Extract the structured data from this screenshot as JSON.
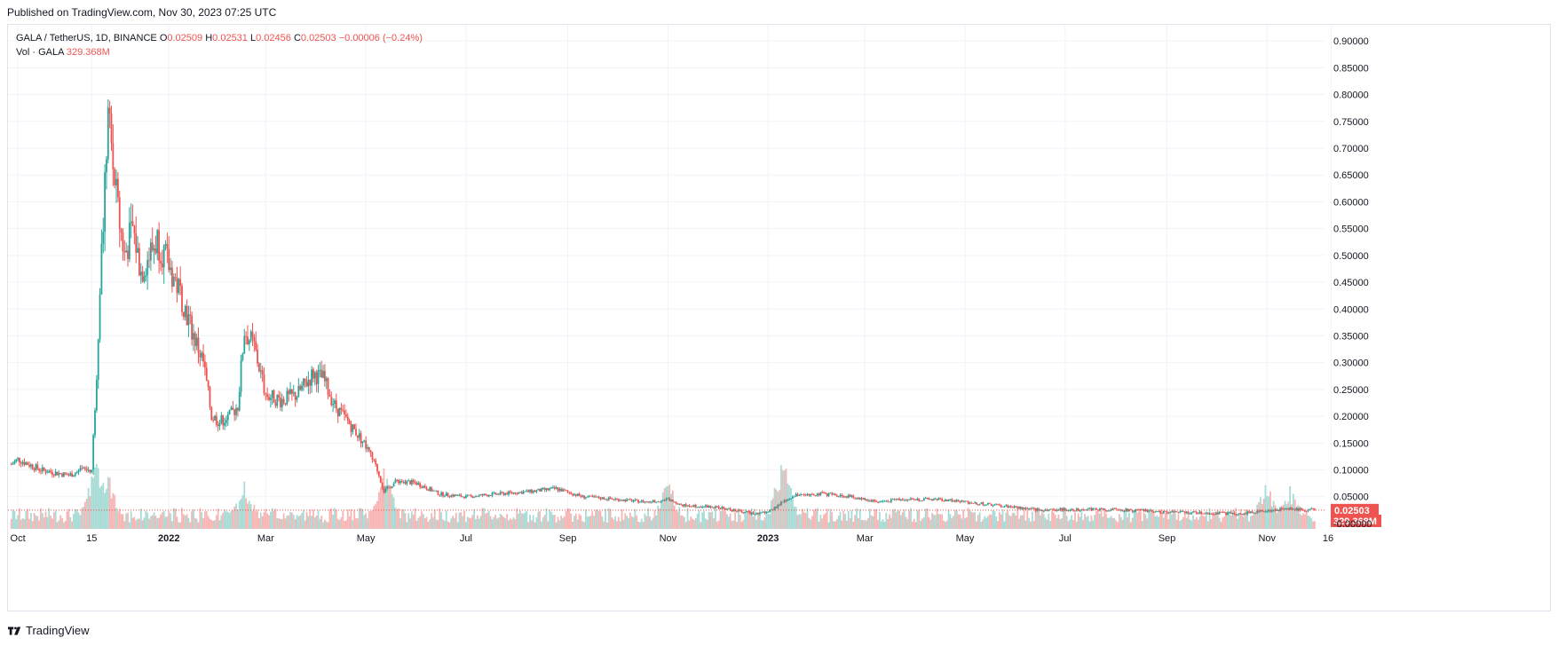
{
  "header": {
    "published": "Published on TradingView.com, Nov 30, 2023 07:25 UTC"
  },
  "legend": {
    "symbol": "GALA / TetherUS, 1D, BINANCE",
    "open_label": "O",
    "open": "0.02509",
    "high_label": "H",
    "high": "0.02531",
    "low_label": "L",
    "low": "0.02456",
    "close_label": "C",
    "close": "0.02503",
    "change": "−0.00006 (−0.24%)",
    "vol_label": "Vol · GALA",
    "vol_value": "329.368M"
  },
  "colors": {
    "up": "#26a69a",
    "down": "#ef5350",
    "grid": "#f0f3fa",
    "axis_text": "#131722",
    "up_vol": "#a7dbd6",
    "down_vol": "#f7b5b3"
  },
  "chart_data": {
    "type": "candlestick",
    "title": "GALA / TetherUS, 1D, BINANCE",
    "x_ticks": [
      "Oct",
      "15",
      "2022",
      "Mar",
      "May",
      "Jul",
      "Sep",
      "Nov",
      "2023",
      "Mar",
      "May",
      "Jul",
      "Sep",
      "Nov",
      "16"
    ],
    "y_ticks": [
      "0.90000",
      "0.85000",
      "0.80000",
      "0.75000",
      "0.70000",
      "0.65000",
      "0.60000",
      "0.55000",
      "0.50000",
      "0.45000",
      "0.40000",
      "0.35000",
      "0.30000",
      "0.25000",
      "0.20000",
      "0.15000",
      "0.10000",
      "0.05000",
      "-0.00000"
    ],
    "ylim": [
      -0.01,
      0.93
    ],
    "grid": true,
    "last_price_label": "0.02503",
    "last_price": 0.02503,
    "volume_label": "329.368M",
    "price_path": [
      {
        "date": "2021-09-27",
        "close": 0.11
      },
      {
        "date": "2021-10-01",
        "close": 0.12
      },
      {
        "date": "2021-10-15",
        "close": 0.1
      },
      {
        "date": "2021-11-01",
        "close": 0.09
      },
      {
        "date": "2021-11-10",
        "close": 0.1
      },
      {
        "date": "2021-11-15",
        "close": 0.1
      },
      {
        "date": "2021-11-18",
        "close": 0.28
      },
      {
        "date": "2021-11-20",
        "close": 0.45
      },
      {
        "date": "2021-11-23",
        "close": 0.62
      },
      {
        "date": "2021-11-25",
        "close": 0.79
      },
      {
        "date": "2021-11-27",
        "close": 0.7
      },
      {
        "date": "2021-12-01",
        "close": 0.58
      },
      {
        "date": "2021-12-05",
        "close": 0.5
      },
      {
        "date": "2021-12-10",
        "close": 0.55
      },
      {
        "date": "2021-12-15",
        "close": 0.47
      },
      {
        "date": "2021-12-20",
        "close": 0.5
      },
      {
        "date": "2021-12-25",
        "close": 0.53
      },
      {
        "date": "2022-01-01",
        "close": 0.48
      },
      {
        "date": "2022-01-08",
        "close": 0.43
      },
      {
        "date": "2022-01-15",
        "close": 0.36
      },
      {
        "date": "2022-01-22",
        "close": 0.3
      },
      {
        "date": "2022-01-27",
        "close": 0.2
      },
      {
        "date": "2022-02-01",
        "close": 0.19
      },
      {
        "date": "2022-02-07",
        "close": 0.2
      },
      {
        "date": "2022-02-12",
        "close": 0.22
      },
      {
        "date": "2022-02-16",
        "close": 0.36
      },
      {
        "date": "2022-02-22",
        "close": 0.33
      },
      {
        "date": "2022-03-01",
        "close": 0.24
      },
      {
        "date": "2022-03-10",
        "close": 0.23
      },
      {
        "date": "2022-03-20",
        "close": 0.24
      },
      {
        "date": "2022-03-30",
        "close": 0.28
      },
      {
        "date": "2022-04-05",
        "close": 0.27
      },
      {
        "date": "2022-04-12",
        "close": 0.22
      },
      {
        "date": "2022-04-20",
        "close": 0.19
      },
      {
        "date": "2022-04-30",
        "close": 0.15
      },
      {
        "date": "2022-05-08",
        "close": 0.1
      },
      {
        "date": "2022-05-12",
        "close": 0.06
      },
      {
        "date": "2022-05-20",
        "close": 0.08
      },
      {
        "date": "2022-06-01",
        "close": 0.075
      },
      {
        "date": "2022-06-15",
        "close": 0.055
      },
      {
        "date": "2022-07-01",
        "close": 0.05
      },
      {
        "date": "2022-07-20",
        "close": 0.055
      },
      {
        "date": "2022-08-10",
        "close": 0.06
      },
      {
        "date": "2022-08-25",
        "close": 0.065
      },
      {
        "date": "2022-09-10",
        "close": 0.05
      },
      {
        "date": "2022-10-01",
        "close": 0.045
      },
      {
        "date": "2022-10-20",
        "close": 0.04
      },
      {
        "date": "2022-11-01",
        "close": 0.045
      },
      {
        "date": "2022-11-10",
        "close": 0.035
      },
      {
        "date": "2022-12-01",
        "close": 0.03
      },
      {
        "date": "2022-12-20",
        "close": 0.02
      },
      {
        "date": "2023-01-01",
        "close": 0.02
      },
      {
        "date": "2023-01-10",
        "close": 0.04
      },
      {
        "date": "2023-01-20",
        "close": 0.055
      },
      {
        "date": "2023-02-05",
        "close": 0.055
      },
      {
        "date": "2023-02-20",
        "close": 0.05
      },
      {
        "date": "2023-03-10",
        "close": 0.04
      },
      {
        "date": "2023-03-20",
        "close": 0.045
      },
      {
        "date": "2023-04-15",
        "close": 0.045
      },
      {
        "date": "2023-05-01",
        "close": 0.04
      },
      {
        "date": "2023-06-01",
        "close": 0.03
      },
      {
        "date": "2023-06-15",
        "close": 0.025
      },
      {
        "date": "2023-07-15",
        "close": 0.027
      },
      {
        "date": "2023-08-15",
        "close": 0.024
      },
      {
        "date": "2023-09-15",
        "close": 0.02
      },
      {
        "date": "2023-10-15",
        "close": 0.018
      },
      {
        "date": "2023-11-01",
        "close": 0.024
      },
      {
        "date": "2023-11-15",
        "close": 0.028
      },
      {
        "date": "2023-11-30",
        "close": 0.025
      }
    ],
    "volume_spikes": [
      {
        "date": "2021-11-18",
        "volume": 1.0
      },
      {
        "date": "2021-11-25",
        "volume": 0.7
      },
      {
        "date": "2022-02-16",
        "volume": 0.6
      },
      {
        "date": "2022-05-12",
        "volume": 0.85
      },
      {
        "date": "2022-11-01",
        "volume": 0.65
      },
      {
        "date": "2023-01-10",
        "volume": 0.9
      },
      {
        "date": "2023-11-01",
        "volume": 0.6
      },
      {
        "date": "2023-11-15",
        "volume": 0.55
      }
    ]
  },
  "footer": {
    "brand": "TradingView"
  }
}
